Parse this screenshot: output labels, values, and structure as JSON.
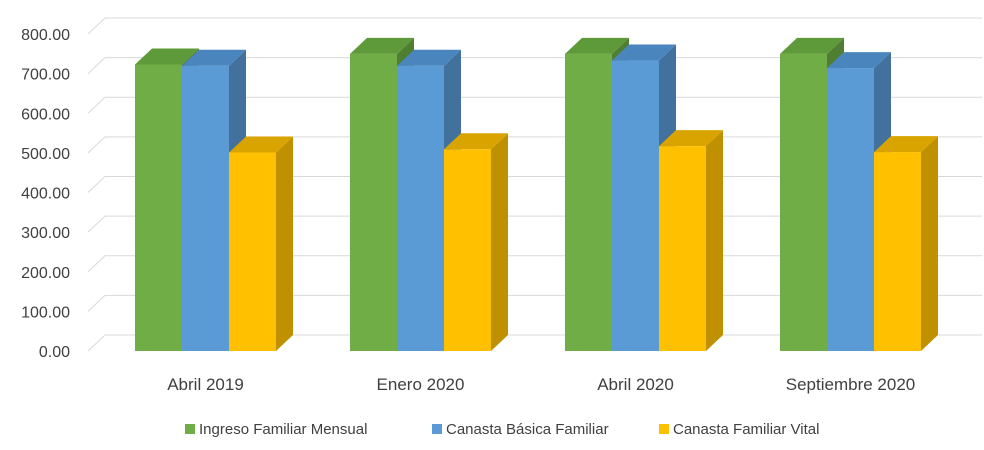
{
  "chart_data": {
    "type": "bar",
    "title": "",
    "xlabel": "",
    "ylabel": "",
    "categories": [
      "Abril 2019",
      "Enero 2020",
      "Abril 2020",
      "Septiembre 2020"
    ],
    "series": [
      {
        "name": "Ingreso Familiar Mensual",
        "values": [
          723,
          750,
          750,
          750
        ],
        "color": "#70ad47",
        "side_color": "#507e32",
        "top_color": "#5f9a3a"
      },
      {
        "name": "Canasta Básica Familiar",
        "values": [
          720,
          720,
          733,
          714
        ],
        "color": "#5b9bd5",
        "side_color": "#41719c",
        "top_color": "#4a86bd"
      },
      {
        "name": "Canasta Familiar Vital",
        "values": [
          501,
          509,
          517,
          502
        ],
        "color": "#ffc000",
        "side_color": "#bf9000",
        "top_color": "#d9a400"
      }
    ],
    "ylim": [
      0,
      800
    ],
    "yticks": [
      "0.00",
      "100.00",
      "200.00",
      "300.00",
      "400.00",
      "500.00",
      "600.00",
      "700.00",
      "800.00"
    ],
    "grid": true,
    "legend_position": "bottom",
    "three_d": true
  }
}
